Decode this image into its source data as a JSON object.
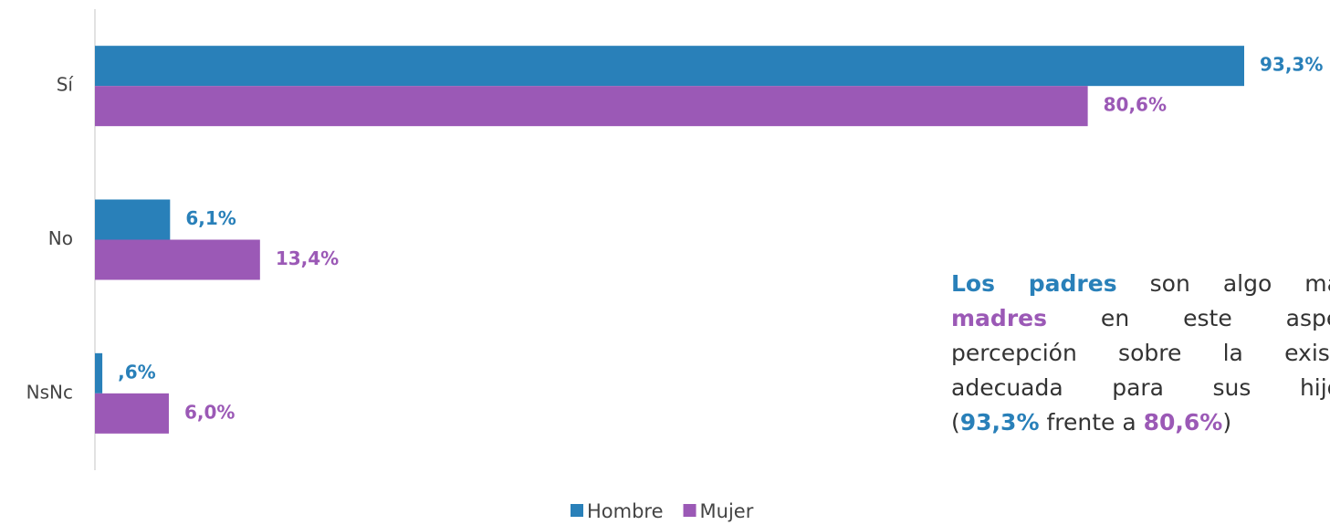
{
  "chart_data": {
    "type": "bar",
    "orientation": "horizontal",
    "categories": [
      "Sí",
      "No",
      "NsNc"
    ],
    "series": [
      {
        "name": "Hombre",
        "color": "#2980b9",
        "values": [
          93.3,
          6.1,
          0.6
        ],
        "value_labels": [
          "93,3%",
          "6,1%",
          ",6%"
        ]
      },
      {
        "name": "Mujer",
        "color": "#9b59b6",
        "values": [
          80.6,
          13.4,
          6.0
        ],
        "value_labels": [
          "80,6%",
          "13,4%",
          "6,0%"
        ]
      }
    ],
    "legend": "bottom",
    "annotation": [
      [
        {
          "text": "Los padres",
          "color": "#2980b9",
          "bold": true
        },
        {
          "text": " son algo más"
        }
      ],
      [
        {
          "text": "madres",
          "color": "#9b59b6",
          "bold": true
        },
        {
          "text": " en este aspec"
        }
      ],
      [
        {
          "text": "percepción sobre la existe"
        }
      ],
      [
        {
          "text": "adecuada para sus hijos"
        }
      ],
      [
        {
          "text": "("
        },
        {
          "text": "93,3%",
          "color": "#2980b9",
          "bold": true
        },
        {
          "text": " frente a "
        },
        {
          "text": "80,6%",
          "color": "#9b59b6",
          "bold": true
        },
        {
          "text": ")"
        }
      ]
    ]
  }
}
